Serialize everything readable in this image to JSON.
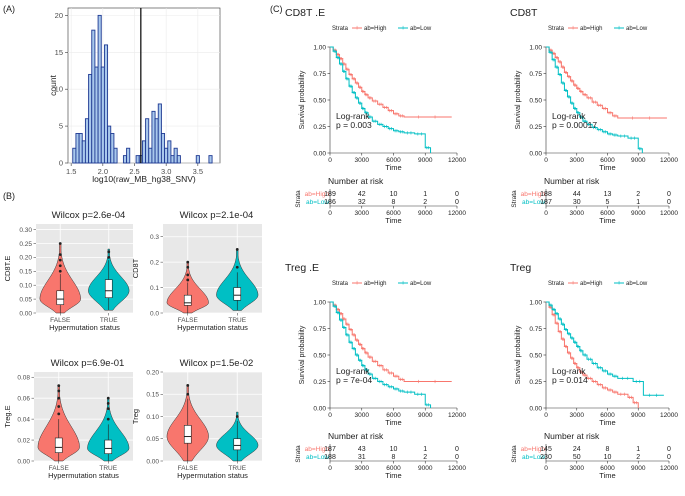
{
  "panels": {
    "a": "(A)",
    "b": "(B)",
    "c": "(C)"
  },
  "colors": {
    "high": "#f8766d",
    "low": "#00bfc4",
    "hist_fill": "#a9c8ec",
    "hist_edge": "#1f3a93",
    "panel_bg": "#e8e8e8"
  },
  "chart_data": [
    {
      "id": "hist",
      "type": "bar",
      "title": "",
      "xlabel": "log10(raw_MB_hg38_SNV)",
      "ylabel": "count",
      "xlim": [
        1.45,
        3.85
      ],
      "ylim": [
        0,
        21
      ],
      "bin_width": 0.05,
      "bins_start": 1.55,
      "values": [
        2,
        4,
        4,
        3,
        6,
        12,
        18,
        13,
        20,
        13,
        16,
        5,
        4,
        2,
        0,
        0,
        1,
        2,
        0,
        0,
        1,
        1,
        3,
        6,
        2,
        7,
        6,
        8,
        4,
        2,
        3,
        1,
        2,
        1,
        0,
        0,
        0,
        0,
        0,
        1,
        0,
        0,
        0,
        1
      ],
      "vline": 2.6,
      "xticks": [
        "1.5",
        "2.0",
        "2.5",
        "3.0",
        "3.5"
      ],
      "yticks": [
        "0",
        "5",
        "10",
        "15",
        "20"
      ]
    },
    {
      "id": "v1",
      "type": "violin",
      "title": "Wilcox p=2.6e-04",
      "ylabel": "CD8T.E",
      "xlabel": "Hypermutation status",
      "categories": [
        "FALSE",
        "TRUE"
      ],
      "ylim": [
        0,
        0.32
      ],
      "yticks": [
        "0.00",
        "0.05",
        "0.10",
        "0.15",
        "0.20",
        "0.25",
        "0.30"
      ],
      "groups": [
        {
          "name": "FALSE",
          "q1": 0.03,
          "median": 0.05,
          "q3": 0.08,
          "wlo": 0.0,
          "whi": 0.14,
          "max": 0.25,
          "outliers": [
            0.15,
            0.17,
            0.19,
            0.21,
            0.25
          ]
        },
        {
          "name": "TRUE",
          "q1": 0.055,
          "median": 0.08,
          "q3": 0.12,
          "wlo": 0.01,
          "whi": 0.19,
          "max": 0.23,
          "outliers": [
            0.2,
            0.22
          ]
        }
      ]
    },
    {
      "id": "v2",
      "type": "violin",
      "title": "Wilcox p=2.1e-04",
      "ylabel": "CD8T",
      "xlabel": "Hypermutation status",
      "categories": [
        "FALSE",
        "TRUE"
      ],
      "ylim": [
        0,
        0.35
      ],
      "yticks": [
        "0.0",
        "0.1",
        "0.2",
        "0.3"
      ],
      "groups": [
        {
          "name": "FALSE",
          "q1": 0.03,
          "median": 0.04,
          "q3": 0.07,
          "wlo": 0.0,
          "whi": 0.12,
          "max": 0.2,
          "outliers": [
            0.13,
            0.15,
            0.18,
            0.2
          ]
        },
        {
          "name": "TRUE",
          "q1": 0.05,
          "median": 0.07,
          "q3": 0.1,
          "wlo": 0.01,
          "whi": 0.16,
          "max": 0.25,
          "outliers": [
            0.18,
            0.25
          ]
        }
      ]
    },
    {
      "id": "v3",
      "type": "violin",
      "title": "Wilcox p=6.9e-01",
      "ylabel": "Treg.E",
      "xlabel": "Hypermutation status",
      "categories": [
        "FALSE",
        "TRUE"
      ],
      "ylim": [
        0,
        0.085
      ],
      "yticks": [
        "0.00",
        "0.02",
        "0.04",
        "0.06",
        "0.08"
      ],
      "groups": [
        {
          "name": "FALSE",
          "q1": 0.008,
          "median": 0.013,
          "q3": 0.022,
          "wlo": 0.0,
          "whi": 0.04,
          "max": 0.072,
          "outliers": [
            0.045,
            0.052,
            0.06,
            0.067,
            0.072
          ]
        },
        {
          "name": "TRUE",
          "q1": 0.007,
          "median": 0.012,
          "q3": 0.02,
          "wlo": 0.0,
          "whi": 0.035,
          "max": 0.06,
          "outliers": [
            0.04,
            0.05,
            0.055,
            0.06
          ]
        }
      ]
    },
    {
      "id": "v4",
      "type": "violin",
      "title": "Wilcox p=1.5e-02",
      "ylabel": "Treg",
      "xlabel": "Hypermutation status",
      "categories": [
        "FALSE",
        "TRUE"
      ],
      "ylim": [
        0,
        0.2
      ],
      "yticks": [
        "0.00",
        "0.05",
        "0.10",
        "0.15",
        "0.20"
      ],
      "groups": [
        {
          "name": "FALSE",
          "q1": 0.04,
          "median": 0.055,
          "q3": 0.08,
          "wlo": 0.0,
          "whi": 0.14,
          "max": 0.17,
          "outliers": [
            0.15,
            0.17
          ]
        },
        {
          "name": "TRUE",
          "q1": 0.025,
          "median": 0.035,
          "q3": 0.05,
          "wlo": 0.0,
          "whi": 0.09,
          "max": 0.11,
          "outliers": [
            0.1
          ]
        }
      ]
    },
    {
      "id": "km1",
      "type": "line",
      "title": "CD8T .E",
      "xlabel": "Time",
      "ylabel": "Survival probability",
      "legend_title": "Strata",
      "legend": [
        "ab=High",
        "ab=Low"
      ],
      "xlim": [
        0,
        12000
      ],
      "ylim": [
        0,
        1
      ],
      "xticks": [
        "0",
        "3000",
        "6000",
        "9000",
        "12000"
      ],
      "yticks": [
        "0.00",
        "0.25",
        "0.50",
        "0.75",
        "1.00"
      ],
      "annotation": [
        "Log-rank",
        "p = 0.003"
      ],
      "series": [
        {
          "name": "ab=High",
          "x": [
            0,
            300,
            600,
            900,
            1200,
            1500,
            1800,
            2100,
            2400,
            2700,
            3000,
            3300,
            3600,
            4000,
            4500,
            5000,
            5500,
            6000,
            6500,
            7000,
            11500
          ],
          "y": [
            1,
            0.97,
            0.93,
            0.89,
            0.84,
            0.79,
            0.74,
            0.7,
            0.66,
            0.62,
            0.58,
            0.55,
            0.52,
            0.49,
            0.46,
            0.43,
            0.4,
            0.37,
            0.35,
            0.34,
            0.34
          ]
        },
        {
          "name": "ab=Low",
          "x": [
            0,
            300,
            600,
            900,
            1200,
            1500,
            1800,
            2100,
            2400,
            2700,
            3000,
            3300,
            3600,
            4000,
            4500,
            5000,
            5500,
            6000,
            6500,
            7000,
            8000,
            9000,
            9500
          ],
          "y": [
            1,
            0.96,
            0.9,
            0.84,
            0.77,
            0.7,
            0.63,
            0.57,
            0.52,
            0.47,
            0.42,
            0.38,
            0.34,
            0.3,
            0.27,
            0.25,
            0.23,
            0.21,
            0.2,
            0.19,
            0.18,
            0.05,
            0.0
          ]
        }
      ],
      "risk_title": "Number at risk",
      "risk_labels": [
        "ab=High",
        "ab=Low"
      ],
      "risk_rows": [
        [
          "189",
          "42",
          "10",
          "1",
          "0"
        ],
        [
          "186",
          "32",
          "8",
          "2",
          "0"
        ]
      ]
    },
    {
      "id": "km2",
      "type": "line",
      "title": "CD8T",
      "xlabel": "Time",
      "ylabel": "Survival probability",
      "legend_title": "Strata",
      "legend": [
        "ab=High",
        "ab=Low"
      ],
      "xlim": [
        0,
        12000
      ],
      "ylim": [
        0,
        1
      ],
      "xticks": [
        "0",
        "3000",
        "6000",
        "9000",
        "12000"
      ],
      "yticks": [
        "0.00",
        "0.25",
        "0.50",
        "0.75",
        "1.00"
      ],
      "annotation": [
        "Log-rank",
        "p = 0.00017"
      ],
      "series": [
        {
          "name": "ab=High",
          "x": [
            0,
            300,
            600,
            900,
            1200,
            1500,
            1800,
            2100,
            2400,
            2700,
            3000,
            3300,
            3600,
            4000,
            4500,
            5000,
            5500,
            6000,
            6500,
            7000,
            11800
          ],
          "y": [
            1,
            0.97,
            0.94,
            0.9,
            0.86,
            0.81,
            0.76,
            0.72,
            0.68,
            0.64,
            0.61,
            0.58,
            0.55,
            0.52,
            0.48,
            0.45,
            0.42,
            0.38,
            0.35,
            0.33,
            0.33
          ]
        },
        {
          "name": "ab=Low",
          "x": [
            0,
            300,
            600,
            900,
            1200,
            1500,
            1800,
            2100,
            2400,
            2700,
            3000,
            3300,
            3600,
            4000,
            4500,
            5000,
            5500,
            6000,
            6500,
            7000,
            8000,
            9000,
            9400
          ],
          "y": [
            1,
            0.95,
            0.88,
            0.81,
            0.74,
            0.66,
            0.59,
            0.53,
            0.47,
            0.42,
            0.38,
            0.34,
            0.3,
            0.27,
            0.24,
            0.22,
            0.2,
            0.18,
            0.17,
            0.16,
            0.14,
            0.04,
            0.0
          ]
        }
      ],
      "risk_title": "Number at risk",
      "risk_labels": [
        "ab=High",
        "ab=Low"
      ],
      "risk_rows": [
        [
          "188",
          "44",
          "13",
          "2",
          "0"
        ],
        [
          "187",
          "30",
          "5",
          "1",
          "0"
        ]
      ]
    },
    {
      "id": "km3",
      "type": "line",
      "title": "Treg .E",
      "xlabel": "Time",
      "ylabel": "Survival probability",
      "legend_title": "Strata",
      "legend": [
        "ab=High",
        "ab=Low"
      ],
      "xlim": [
        0,
        12000
      ],
      "ylim": [
        0,
        1
      ],
      "xticks": [
        "0",
        "3000",
        "6000",
        "9000",
        "12000"
      ],
      "yticks": [
        "0.00",
        "0.25",
        "0.50",
        "0.75",
        "1.00"
      ],
      "annotation": [
        "Log-rank",
        "p = 7e-04"
      ],
      "series": [
        {
          "name": "ab=High",
          "x": [
            0,
            300,
            600,
            900,
            1200,
            1500,
            1800,
            2100,
            2400,
            2700,
            3000,
            3300,
            3600,
            4000,
            4500,
            5000,
            5500,
            6000,
            6500,
            7000,
            11500
          ],
          "y": [
            1,
            0.97,
            0.93,
            0.89,
            0.84,
            0.79,
            0.74,
            0.69,
            0.64,
            0.6,
            0.56,
            0.52,
            0.48,
            0.44,
            0.4,
            0.36,
            0.33,
            0.3,
            0.27,
            0.25,
            0.25
          ]
        },
        {
          "name": "ab=Low",
          "x": [
            0,
            300,
            600,
            900,
            1200,
            1500,
            1800,
            2100,
            2400,
            2700,
            3000,
            3300,
            3600,
            4000,
            4500,
            5000,
            5500,
            6000,
            6500,
            7000,
            8000,
            9000,
            9500
          ],
          "y": [
            1,
            0.96,
            0.9,
            0.83,
            0.76,
            0.69,
            0.62,
            0.56,
            0.5,
            0.45,
            0.4,
            0.36,
            0.32,
            0.28,
            0.25,
            0.22,
            0.2,
            0.18,
            0.16,
            0.15,
            0.13,
            0.03,
            0.0
          ]
        }
      ],
      "risk_title": "Number at risk",
      "risk_labels": [
        "ab=High",
        "ab=Low"
      ],
      "risk_rows": [
        [
          "187",
          "43",
          "10",
          "1",
          "0"
        ],
        [
          "188",
          "31",
          "8",
          "2",
          "0"
        ]
      ]
    },
    {
      "id": "km4",
      "type": "line",
      "title": "Treg",
      "xlabel": "Time",
      "ylabel": "Survival probability",
      "legend_title": "Strata",
      "legend": [
        "ab=High",
        "ab=Low"
      ],
      "xlim": [
        0,
        12000
      ],
      "ylim": [
        0,
        1
      ],
      "xticks": [
        "0",
        "3000",
        "6000",
        "9000",
        "12000"
      ],
      "yticks": [
        "0.00",
        "0.25",
        "0.50",
        "0.75",
        "1.00"
      ],
      "annotation": [
        "Log-rank",
        "p = 0.014"
      ],
      "series": [
        {
          "name": "ab=High",
          "x": [
            0,
            300,
            600,
            900,
            1200,
            1500,
            1800,
            2100,
            2400,
            2700,
            3000,
            3300,
            3600,
            4000,
            4500,
            5000,
            5500,
            6000,
            6500,
            7000,
            8000,
            8500,
            9000
          ],
          "y": [
            1,
            0.95,
            0.88,
            0.8,
            0.72,
            0.65,
            0.58,
            0.52,
            0.47,
            0.42,
            0.38,
            0.34,
            0.31,
            0.28,
            0.25,
            0.22,
            0.19,
            0.17,
            0.15,
            0.13,
            0.1,
            0.05,
            0.0
          ]
        },
        {
          "name": "ab=Low",
          "x": [
            0,
            300,
            600,
            900,
            1200,
            1500,
            1800,
            2100,
            2400,
            2700,
            3000,
            3300,
            3600,
            4000,
            4500,
            5000,
            5500,
            6000,
            6500,
            7000,
            8500,
            9500,
            11500
          ],
          "y": [
            1,
            0.97,
            0.93,
            0.89,
            0.84,
            0.79,
            0.74,
            0.7,
            0.66,
            0.62,
            0.58,
            0.54,
            0.5,
            0.46,
            0.42,
            0.38,
            0.35,
            0.32,
            0.3,
            0.28,
            0.25,
            0.12,
            0.12
          ]
        }
      ],
      "risk_title": "Number at risk",
      "risk_labels": [
        "ab=High",
        "ab=Low"
      ],
      "risk_rows": [
        [
          "145",
          "24",
          "8",
          "1",
          "0"
        ],
        [
          "230",
          "50",
          "10",
          "2",
          "0"
        ]
      ]
    }
  ]
}
